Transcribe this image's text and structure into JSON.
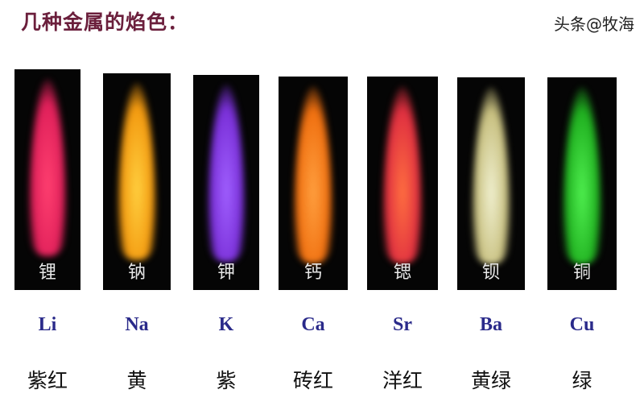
{
  "title": "几种金属的焰色：",
  "elements": [
    {
      "label": "锂",
      "symbol": "Li",
      "color_name": "紫红",
      "flame_color": "#e0205a",
      "flame_core": "#ff4070"
    },
    {
      "label": "钠",
      "symbol": "Na",
      "color_name": "黄",
      "flame_color": "#f39a10",
      "flame_core": "#ffd040"
    },
    {
      "label": "钾",
      "symbol": "K",
      "color_name": "紫",
      "flame_color": "#7a30d8",
      "flame_core": "#a060ff"
    },
    {
      "label": "钙",
      "symbol": "Ca",
      "color_name": "砖红",
      "flame_color": "#f07010",
      "flame_core": "#ffa040"
    },
    {
      "label": "锶",
      "symbol": "Sr",
      "color_name": "洋红",
      "flame_color": "#e03040",
      "flame_core": "#ff7040"
    },
    {
      "label": "钡",
      "symbol": "Ba",
      "color_name": "黄绿",
      "flame_color": "#c8c080",
      "flame_core": "#f0f0d0"
    },
    {
      "label": "铜",
      "symbol": "Cu",
      "color_name": "绿",
      "flame_color": "#20b020",
      "flame_core": "#50f050"
    }
  ],
  "watermark": "头条@牧海"
}
